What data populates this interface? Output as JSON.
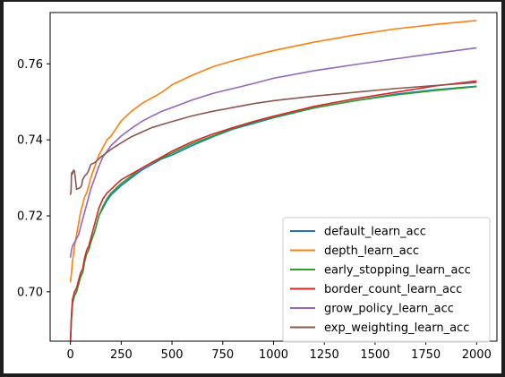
{
  "chart_data": {
    "type": "line",
    "title": "",
    "xlabel": "",
    "ylabel": "",
    "xlim": [
      -100,
      2100
    ],
    "ylim": [
      0.687,
      0.7735
    ],
    "x_ticks": [
      0,
      250,
      500,
      750,
      1000,
      1250,
      1500,
      1750,
      2000
    ],
    "y_ticks": [
      0.7,
      0.72,
      0.74,
      0.76
    ],
    "y_tick_labels": [
      "0.70",
      "0.72",
      "0.74",
      "0.76"
    ],
    "grid": false,
    "legend_position": "lower-right",
    "series": [
      {
        "name": "default_learn_acc",
        "color": "#1f77b4",
        "x": [
          0,
          5,
          10,
          20,
          30,
          40,
          50,
          60,
          70,
          80,
          90,
          100,
          120,
          140,
          160,
          180,
          200,
          250,
          300,
          350,
          400,
          450,
          500,
          600,
          700,
          800,
          900,
          1000,
          1200,
          1400,
          1600,
          1800,
          2000
        ],
        "y": [
          0.687,
          0.693,
          0.697,
          0.699,
          0.7,
          0.702,
          0.704,
          0.705,
          0.708,
          0.71,
          0.711,
          0.713,
          0.716,
          0.72,
          0.722,
          0.724,
          0.7255,
          0.728,
          0.73,
          0.732,
          0.7335,
          0.735,
          0.736,
          0.7385,
          0.7408,
          0.7428,
          0.7443,
          0.7458,
          0.7484,
          0.7503,
          0.752,
          0.7532,
          0.7541
        ]
      },
      {
        "name": "depth_learn_acc",
        "color": "#ff7f0e",
        "x": [
          0,
          5,
          10,
          20,
          30,
          40,
          50,
          60,
          70,
          80,
          90,
          100,
          120,
          140,
          160,
          180,
          200,
          250,
          300,
          350,
          400,
          450,
          500,
          600,
          700,
          800,
          900,
          1000,
          1200,
          1400,
          1600,
          1800,
          2000
        ],
        "y": [
          0.7025,
          0.705,
          0.708,
          0.712,
          0.715,
          0.718,
          0.721,
          0.723,
          0.725,
          0.726,
          0.728,
          0.73,
          0.733,
          0.736,
          0.738,
          0.74,
          0.741,
          0.745,
          0.7475,
          0.7495,
          0.751,
          0.7525,
          0.7545,
          0.757,
          0.7592,
          0.7608,
          0.7622,
          0.7635,
          0.7657,
          0.7676,
          0.7692,
          0.7704,
          0.7714
        ]
      },
      {
        "name": "early_stopping_learn_acc",
        "color": "#2ca02c",
        "x": [
          0,
          5,
          10,
          20,
          30,
          40,
          50,
          60,
          70,
          80,
          90,
          100,
          120,
          140,
          160,
          180,
          200,
          250,
          300,
          350,
          400,
          450,
          500,
          600,
          700,
          800,
          900,
          1000,
          1200,
          1400,
          1600,
          1800,
          2000
        ],
        "y": [
          0.687,
          0.693,
          0.697,
          0.699,
          0.7,
          0.702,
          0.704,
          0.705,
          0.708,
          0.71,
          0.711,
          0.713,
          0.716,
          0.72,
          0.7225,
          0.7245,
          0.726,
          0.7285,
          0.7305,
          0.7325,
          0.734,
          0.7352,
          0.7365,
          0.739,
          0.741,
          0.743,
          0.7446,
          0.746,
          0.7484,
          0.7503,
          0.7518,
          0.753,
          0.754
        ]
      },
      {
        "name": "border_count_learn_acc",
        "color": "#d62728",
        "x": [
          0,
          5,
          10,
          20,
          30,
          40,
          50,
          60,
          70,
          80,
          90,
          100,
          120,
          140,
          160,
          180,
          200,
          250,
          300,
          350,
          400,
          450,
          500,
          600,
          700,
          800,
          900,
          1000,
          1200,
          1400,
          1600,
          1800,
          2000
        ],
        "y": [
          0.687,
          0.694,
          0.698,
          0.7,
          0.701,
          0.703,
          0.705,
          0.706,
          0.709,
          0.711,
          0.712,
          0.714,
          0.718,
          0.722,
          0.7245,
          0.726,
          0.727,
          0.7295,
          0.731,
          0.7325,
          0.734,
          0.7355,
          0.737,
          0.7395,
          0.7415,
          0.7432,
          0.7448,
          0.7462,
          0.7488,
          0.7508,
          0.7525,
          0.7542,
          0.7555
        ]
      },
      {
        "name": "grow_policy_learn_acc",
        "color": "#9467bd",
        "x": [
          0,
          5,
          10,
          20,
          30,
          40,
          50,
          60,
          70,
          80,
          90,
          100,
          120,
          140,
          160,
          180,
          200,
          250,
          300,
          350,
          400,
          450,
          500,
          600,
          700,
          800,
          900,
          1000,
          1200,
          1400,
          1600,
          1800,
          2000
        ],
        "y": [
          0.709,
          0.711,
          0.712,
          0.713,
          0.714,
          0.715,
          0.717,
          0.719,
          0.721,
          0.723,
          0.725,
          0.727,
          0.73,
          0.733,
          0.7355,
          0.737,
          0.7385,
          0.741,
          0.743,
          0.7448,
          0.7462,
          0.7475,
          0.7485,
          0.7505,
          0.7522,
          0.7535,
          0.7548,
          0.7562,
          0.7582,
          0.7598,
          0.7613,
          0.7628,
          0.7642
        ]
      },
      {
        "name": "exp_weighting_learn_acc",
        "color": "#8c564b",
        "x": [
          0,
          3,
          5,
          8,
          10,
          15,
          20,
          30,
          40,
          50,
          55,
          60,
          70,
          80,
          90,
          100,
          120,
          150,
          200,
          250,
          300,
          350,
          400,
          450,
          500,
          600,
          700,
          800,
          900,
          1000,
          1200,
          1400,
          1600,
          1800,
          2000
        ],
        "y": [
          0.7255,
          0.7265,
          0.731,
          0.7315,
          0.731,
          0.732,
          0.7318,
          0.727,
          0.7272,
          0.7275,
          0.728,
          0.7295,
          0.7305,
          0.731,
          0.732,
          0.7335,
          0.734,
          0.7355,
          0.7375,
          0.7392,
          0.7408,
          0.742,
          0.7432,
          0.744,
          0.7448,
          0.7463,
          0.7475,
          0.7485,
          0.7495,
          0.7503,
          0.7515,
          0.7525,
          0.7535,
          0.7543,
          0.7551
        ]
      }
    ]
  }
}
